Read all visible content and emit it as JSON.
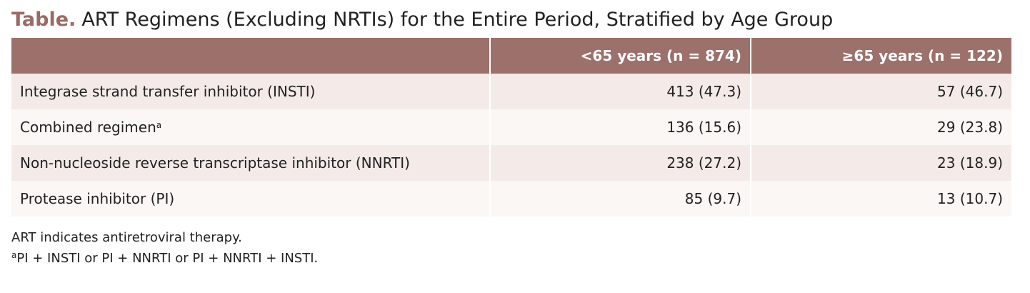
{
  "title": {
    "label": "Table.",
    "text": "ART Regimens (Excluding NRTIs) for the Entire Period, Stratified by Age Group"
  },
  "table": {
    "header": [
      "<65 years (n = 874)",
      "≥65 years (n = 122)"
    ],
    "rows": [
      {
        "label": "Integrase strand transfer inhibitor (INSTI)",
        "cells": [
          "413 (47.3)",
          "57 (46.7)"
        ]
      },
      {
        "label": "Combined regimen",
        "note": "a",
        "cells": [
          "136 (15.6)",
          "29 (23.8)"
        ]
      },
      {
        "label": "Non-nucleoside reverse transcriptase inhibitor (NNRTI)",
        "cells": [
          "238 (27.2)",
          "23 (18.9)"
        ]
      },
      {
        "label": "Protease inhibitor (PI)",
        "cells": [
          "85 (9.7)",
          "13 (10.7)"
        ]
      }
    ]
  },
  "footnotes": [
    {
      "text": "ART indicates antiretroviral therapy."
    },
    {
      "marker": "a",
      "text": "PI + INSTI or PI + NNRTI or PI + NNRTI + INSTI."
    }
  ]
}
